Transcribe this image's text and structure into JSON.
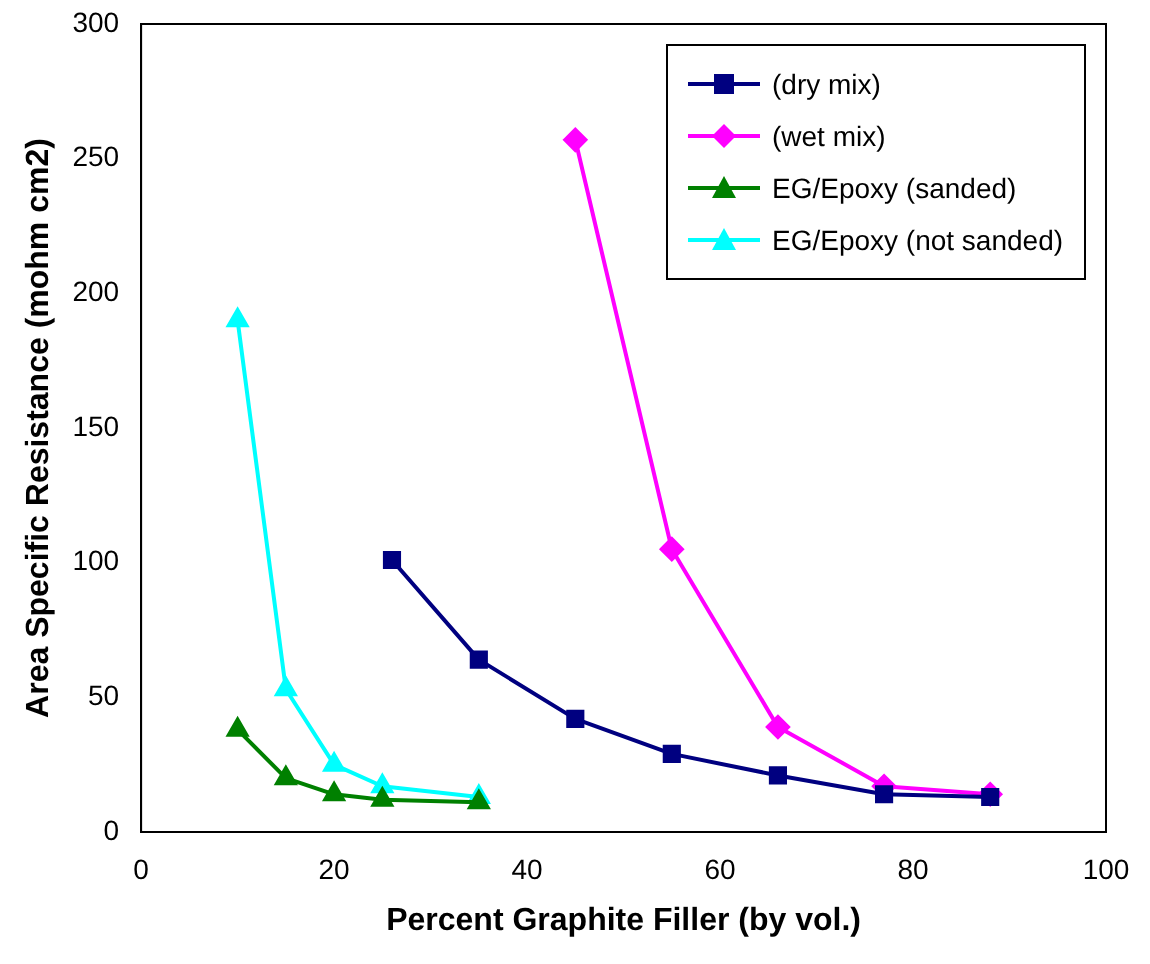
{
  "chart_data": {
    "type": "line",
    "xlabel": "Percent Graphite Filler (by vol.)",
    "ylabel": "Area Specific Resistance (mohm cm2)",
    "xlim": [
      0,
      100
    ],
    "xticks": [
      0,
      20,
      40,
      60,
      80,
      100
    ],
    "ylim": [
      0,
      300
    ],
    "yticks": [
      0,
      50,
      100,
      150,
      200,
      250,
      300
    ],
    "grid": false,
    "legend": "top right",
    "line_style": "solid",
    "series": [
      {
        "name": "(dry mix)",
        "color": "#000080",
        "marker": "square",
        "x": [
          26,
          35,
          45,
          55,
          66,
          77,
          88
        ],
        "values": [
          101,
          64,
          42,
          29,
          21,
          14,
          13
        ]
      },
      {
        "name": "(wet mix)",
        "color": "#ff00ff",
        "marker": "diamond",
        "x": [
          45,
          55,
          66,
          77,
          88
        ],
        "values": [
          257,
          105,
          39,
          17,
          14
        ]
      },
      {
        "name": "EG/Epoxy (sanded)",
        "color": "#008000",
        "marker": "triangle",
        "x": [
          10,
          15,
          20,
          25,
          35
        ],
        "values": [
          38,
          20,
          14,
          12,
          11
        ]
      },
      {
        "name": "EG/Epoxy (not sanded)",
        "color": "#00ffff",
        "marker": "triangle",
        "x": [
          10,
          15,
          20,
          25,
          35
        ],
        "values": [
          190,
          53,
          25,
          17,
          13
        ]
      }
    ]
  }
}
